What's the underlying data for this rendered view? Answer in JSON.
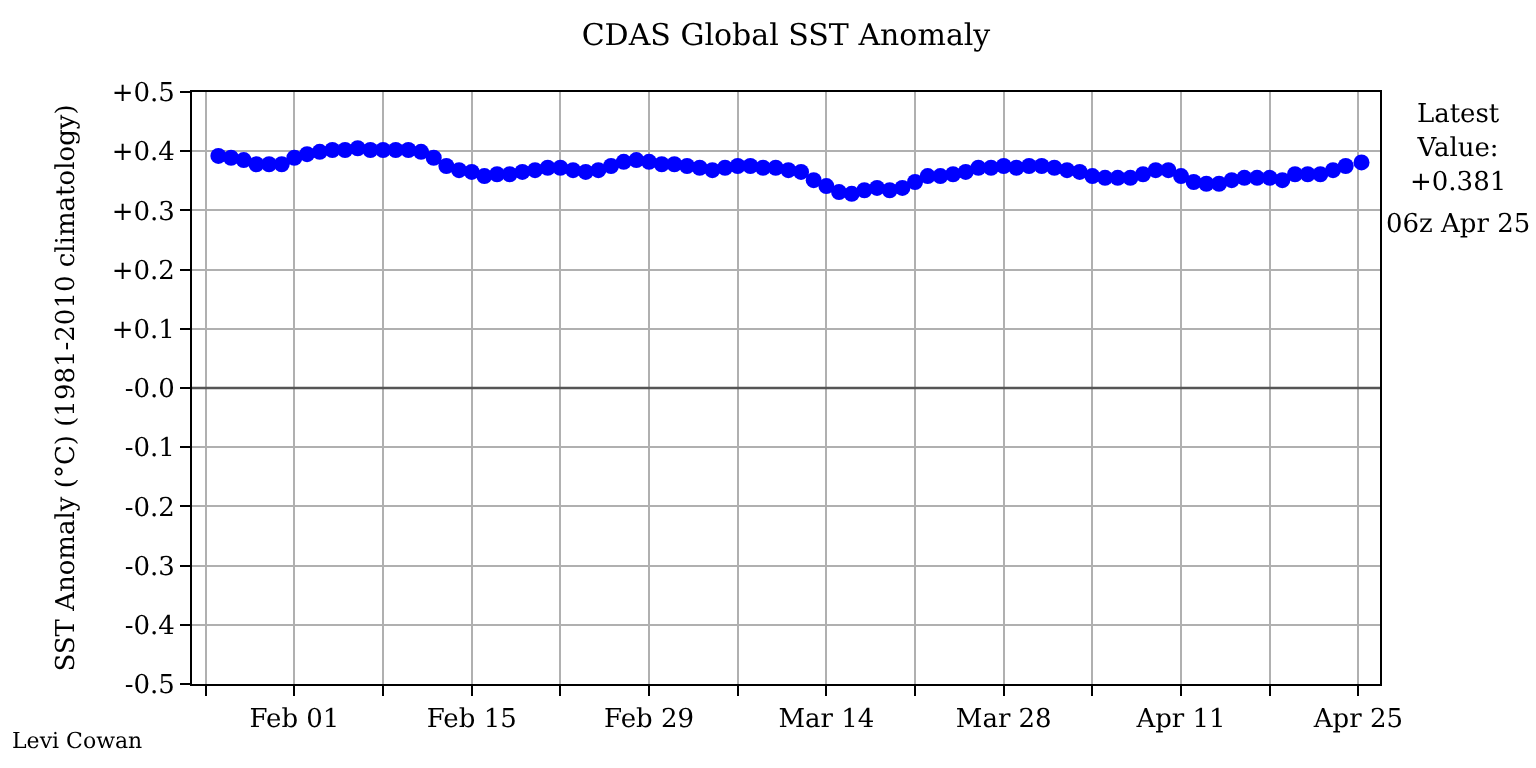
{
  "chart_data": {
    "type": "scatter",
    "title": "CDAS Global SST Anomaly",
    "ylabel": "SST Anomaly (°C) (1981-2010 climatology)",
    "x": [
      "--01-26",
      "--01-27",
      "--01-28",
      "--01-29",
      "--01-30",
      "--01-31",
      "--02-01",
      "--02-02",
      "--02-03",
      "--02-04",
      "--02-05",
      "--02-06",
      "--02-07",
      "--02-08",
      "--02-09",
      "--02-10",
      "--02-11",
      "--02-12",
      "--02-13",
      "--02-14",
      "--02-15",
      "--02-16",
      "--02-17",
      "--02-18",
      "--02-19",
      "--02-20",
      "--02-21",
      "--02-22",
      "--02-23",
      "--02-24",
      "--02-25",
      "--02-26",
      "--02-27",
      "--02-28",
      "--02-29",
      "--03-01",
      "--03-02",
      "--03-03",
      "--03-04",
      "--03-05",
      "--03-06",
      "--03-07",
      "--03-08",
      "--03-09",
      "--03-10",
      "--03-11",
      "--03-12",
      "--03-13",
      "--03-14",
      "--03-15",
      "--03-16",
      "--03-17",
      "--03-18",
      "--03-19",
      "--03-20",
      "--03-21",
      "--03-22",
      "--03-23",
      "--03-24",
      "--03-25",
      "--03-26",
      "--03-27",
      "--03-28",
      "--03-29",
      "--03-30",
      "--03-31",
      "--04-01",
      "--04-02",
      "--04-03",
      "--04-04",
      "--04-05",
      "--04-06",
      "--04-07",
      "--04-08",
      "--04-09",
      "--04-10",
      "--04-11",
      "--04-12",
      "--04-13",
      "--04-14",
      "--04-15",
      "--04-16",
      "--04-17",
      "--04-18",
      "--04-19",
      "--04-20",
      "--04-21",
      "--04-22",
      "--04-23",
      "--04-24",
      "--04-25T06:00"
    ],
    "series": [
      {
        "color": "#0000ff",
        "values": [
          0.392,
          0.389,
          0.385,
          0.378,
          0.378,
          0.378,
          0.389,
          0.395,
          0.399,
          0.402,
          0.402,
          0.405,
          0.402,
          0.402,
          0.402,
          0.402,
          0.399,
          0.389,
          0.375,
          0.368,
          0.365,
          0.358,
          0.361,
          0.361,
          0.365,
          0.368,
          0.372,
          0.372,
          0.368,
          0.365,
          0.368,
          0.375,
          0.382,
          0.385,
          0.382,
          0.378,
          0.378,
          0.375,
          0.372,
          0.368,
          0.372,
          0.375,
          0.375,
          0.372,
          0.372,
          0.368,
          0.365,
          0.351,
          0.341,
          0.331,
          0.328,
          0.334,
          0.338,
          0.334,
          0.338,
          0.348,
          0.358,
          0.358,
          0.361,
          0.365,
          0.372,
          0.372,
          0.375,
          0.372,
          0.375,
          0.375,
          0.372,
          0.368,
          0.365,
          0.358,
          0.355,
          0.355,
          0.355,
          0.361,
          0.368,
          0.368,
          0.358,
          0.348,
          0.345,
          0.345,
          0.351,
          0.355,
          0.355,
          0.355,
          0.351,
          0.361,
          0.361,
          0.361,
          0.368,
          0.375,
          0.381
        ]
      }
    ],
    "xlim": [
      "--01-23T22:00",
      "--04-26T17:00"
    ],
    "xticks": [
      {
        "value": "--01-25",
        "label": null
      },
      {
        "value": "--02-01",
        "label": "Feb 01"
      },
      {
        "value": "--02-08",
        "label": null
      },
      {
        "value": "--02-15",
        "label": "Feb 15"
      },
      {
        "value": "--02-22",
        "label": null
      },
      {
        "value": "--02-29",
        "label": "Feb 29"
      },
      {
        "value": "--03-07",
        "label": null
      },
      {
        "value": "--03-14",
        "label": "Mar 14"
      },
      {
        "value": "--03-21",
        "label": null
      },
      {
        "value": "--03-28",
        "label": "Mar 28"
      },
      {
        "value": "--04-04",
        "label": null
      },
      {
        "value": "--04-11",
        "label": "Apr 11"
      },
      {
        "value": "--04-18",
        "label": null
      },
      {
        "value": "--04-25",
        "label": "Apr 25"
      }
    ],
    "ylim": [
      -0.5,
      0.5
    ],
    "yticks": [
      {
        "value": -0.5,
        "label": "-0.5"
      },
      {
        "value": -0.4,
        "label": "-0.4"
      },
      {
        "value": -0.3,
        "label": "-0.3"
      },
      {
        "value": -0.2,
        "label": "-0.2"
      },
      {
        "value": -0.1,
        "label": "-0.1"
      },
      {
        "value": 0,
        "label": "-0.0"
      },
      {
        "value": 0.1,
        "label": "+0.1"
      },
      {
        "value": 0.2,
        "label": "+0.2"
      },
      {
        "value": 0.3,
        "label": "+0.3"
      },
      {
        "value": 0.4,
        "label": "+0.4"
      },
      {
        "value": 0.5,
        "label": "+0.5"
      }
    ],
    "ref_lines": [
      {
        "axis": "y",
        "value": 0,
        "color": "#555555"
      }
    ],
    "grid": true,
    "marker": "circle",
    "annotations": [
      "Latest\nValue:\n+0.381",
      "06z Apr 25",
      "Levi Cowan"
    ]
  }
}
